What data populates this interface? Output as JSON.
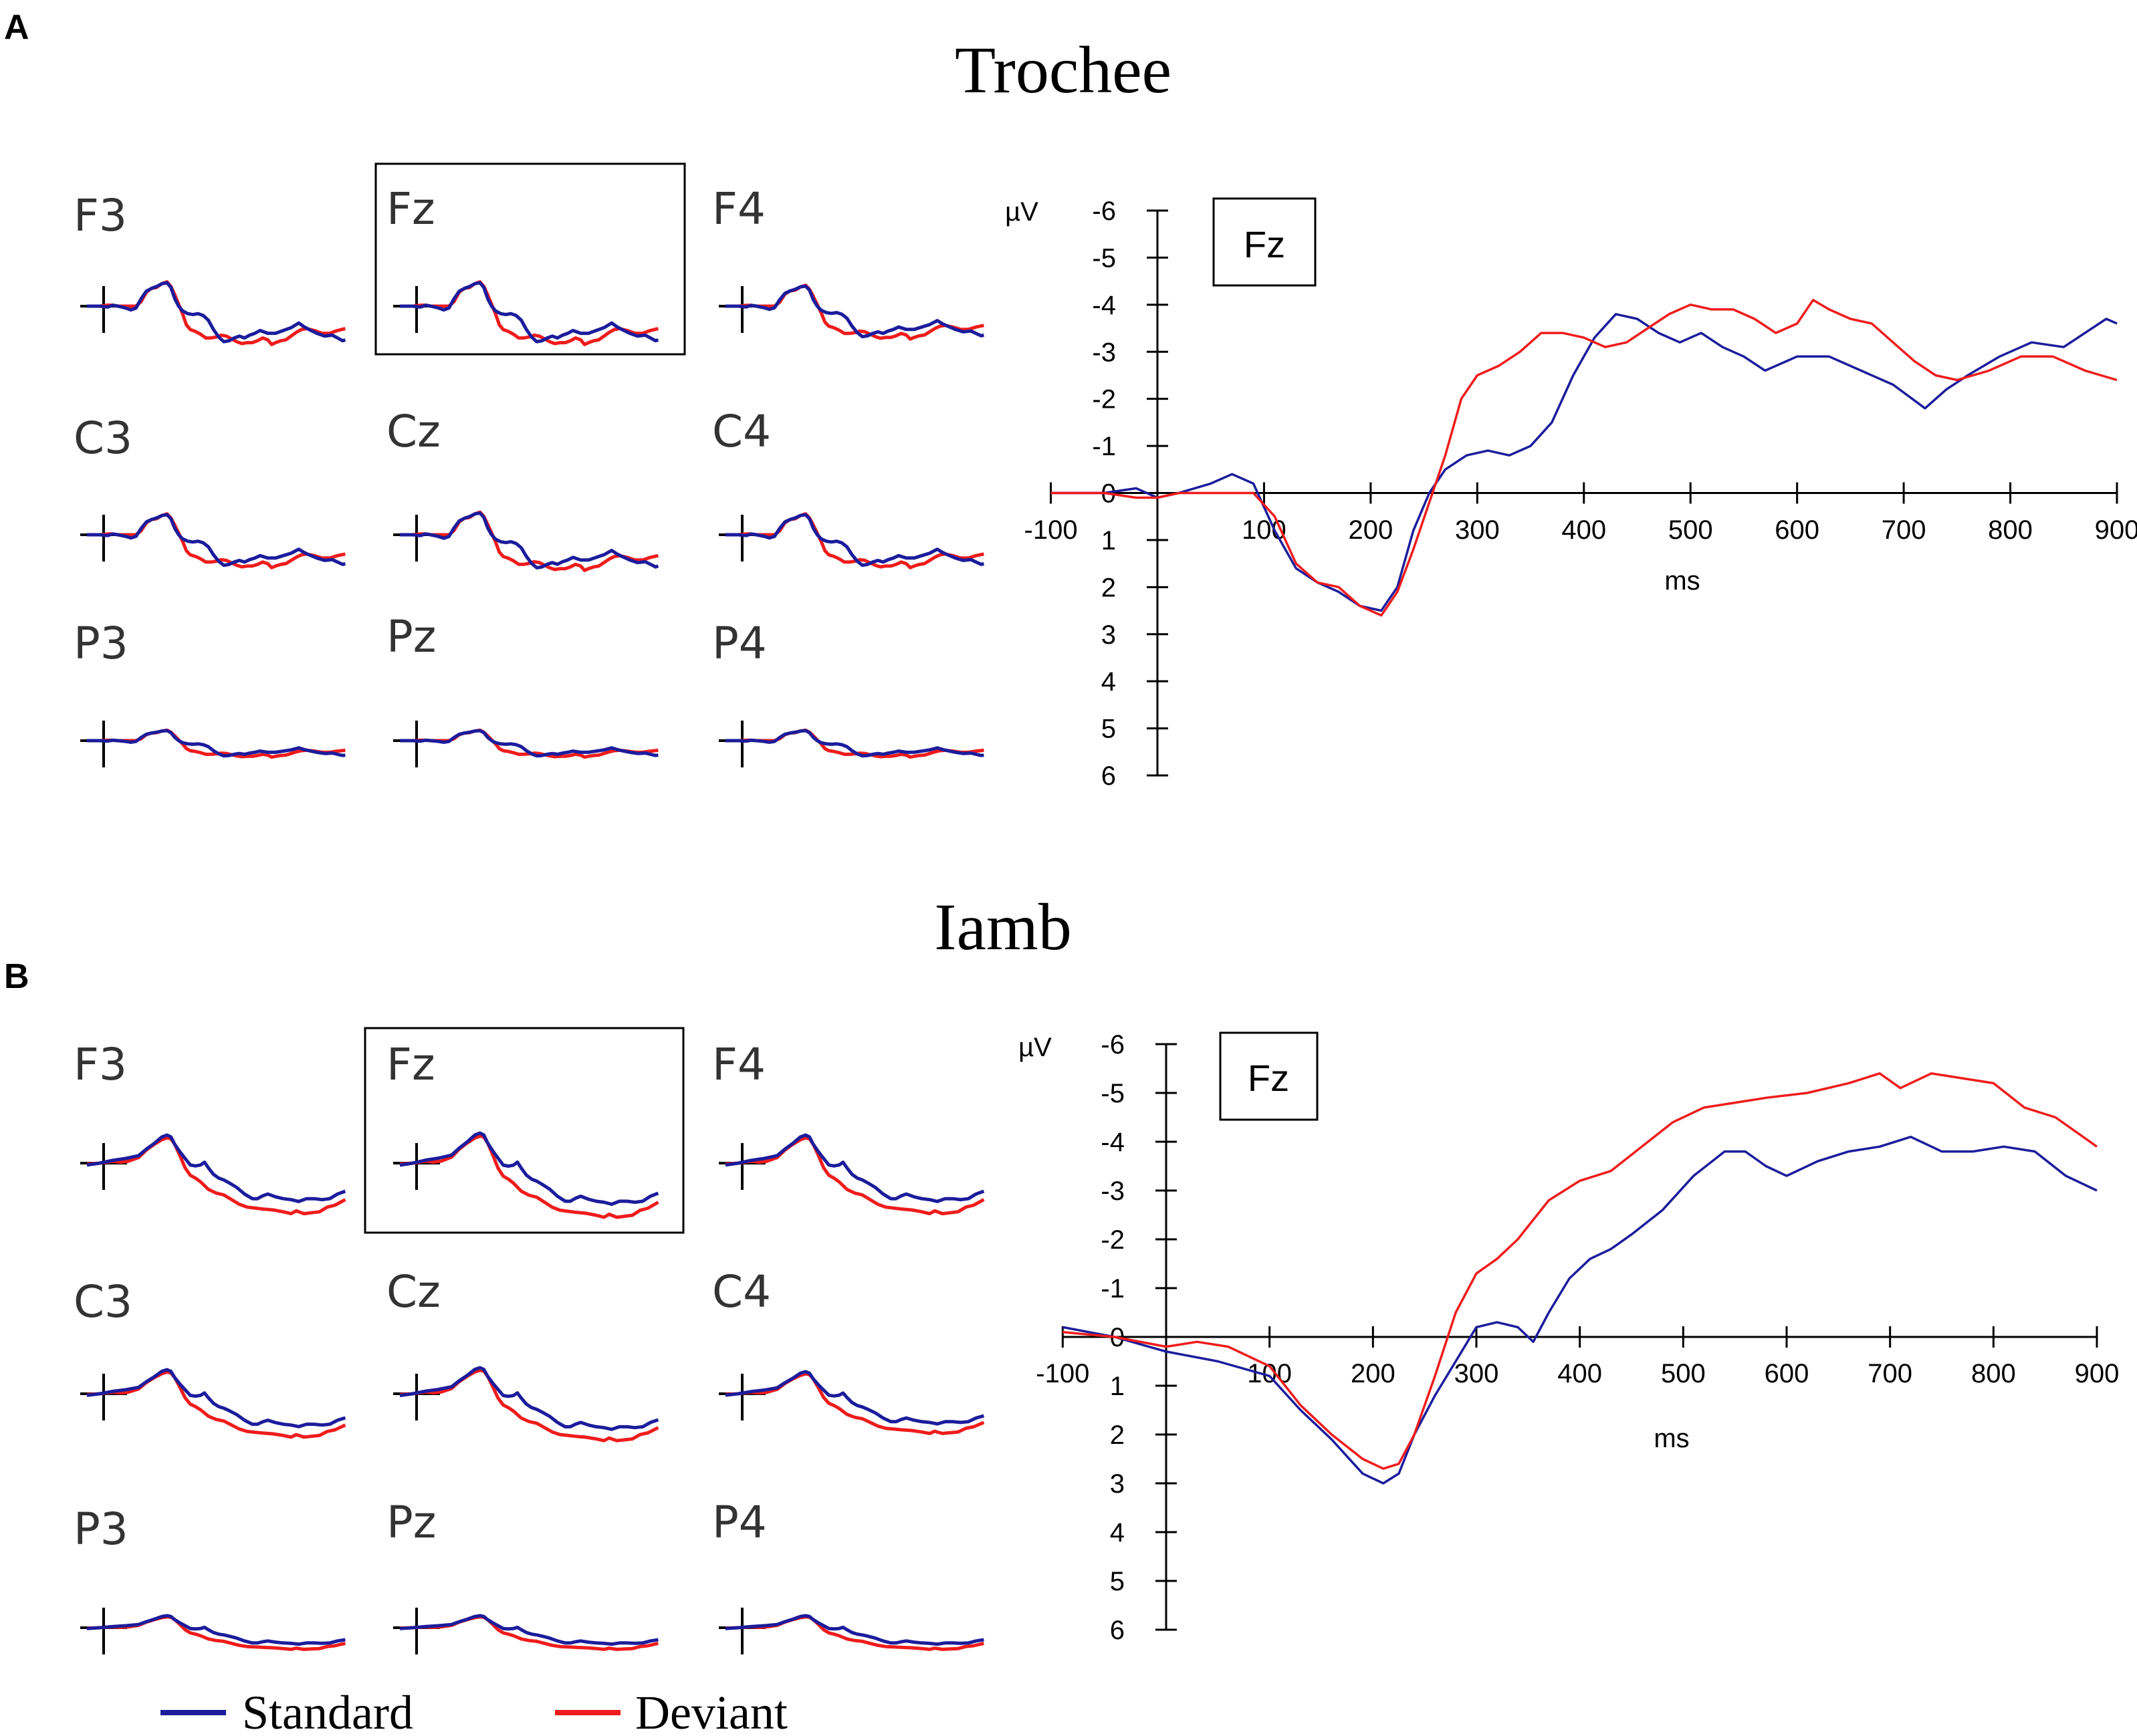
{
  "panel_a": {
    "letter": "A",
    "title": "Trochee",
    "electrodes": [
      "F3",
      "Fz",
      "F4",
      "C3",
      "Cz",
      "C4",
      "P3",
      "Pz",
      "P4"
    ]
  },
  "panel_b": {
    "letter": "B",
    "title": "Iamb",
    "electrodes": [
      "F3",
      "Fz",
      "F4",
      "C3",
      "Cz",
      "C4",
      "P3",
      "Pz",
      "P4"
    ]
  },
  "legend": {
    "items": [
      {
        "label": "Standard",
        "color": "#1c1c9c"
      },
      {
        "label": "Deviant",
        "color": "#ee1c1c"
      }
    ]
  },
  "colors": {
    "standard": "#1c1c9c",
    "deviant": "#ee1c1c"
  },
  "chart_data": [
    {
      "type": "line",
      "panel": "A",
      "box_label": "Fz",
      "xlabel": "ms",
      "ylabel": "µV",
      "xlim": [
        -100,
        900
      ],
      "ylim": [
        6,
        -6
      ],
      "y_inverted": true,
      "xticks": [
        -100,
        100,
        200,
        300,
        400,
        500,
        600,
        700,
        800,
        900
      ],
      "yticks": [
        -6,
        -5,
        -4,
        -3,
        -2,
        -1,
        0,
        1,
        2,
        3,
        4,
        5,
        6
      ],
      "series": [
        {
          "name": "Standard",
          "x": [
            -100,
            -50,
            -20,
            0,
            20,
            50,
            70,
            90,
            110,
            130,
            150,
            170,
            190,
            210,
            225,
            240,
            255,
            270,
            290,
            310,
            330,
            350,
            370,
            390,
            410,
            430,
            450,
            470,
            490,
            510,
            530,
            550,
            570,
            600,
            630,
            660,
            690,
            720,
            740,
            760,
            790,
            820,
            850,
            870,
            890,
            900
          ],
          "y": [
            0,
            0,
            -0.1,
            0.1,
            0,
            -0.2,
            -0.4,
            -0.2,
            0.8,
            1.6,
            1.9,
            2.1,
            2.4,
            2.5,
            2.0,
            0.8,
            0,
            -0.5,
            -0.8,
            -0.9,
            -0.8,
            -1.0,
            -1.5,
            -2.5,
            -3.3,
            -3.8,
            -3.7,
            -3.4,
            -3.2,
            -3.4,
            -3.1,
            -2.9,
            -2.6,
            -2.9,
            -2.9,
            -2.6,
            -2.3,
            -1.8,
            -2.2,
            -2.5,
            -2.9,
            -3.2,
            -3.1,
            -3.4,
            -3.7,
            -3.6
          ]
        },
        {
          "name": "Deviant",
          "x": [
            -100,
            -50,
            -20,
            0,
            20,
            50,
            70,
            90,
            110,
            130,
            150,
            170,
            190,
            210,
            225,
            240,
            255,
            270,
            285,
            300,
            320,
            340,
            360,
            380,
            400,
            420,
            440,
            460,
            480,
            500,
            520,
            540,
            560,
            580,
            600,
            615,
            630,
            650,
            670,
            690,
            710,
            730,
            750,
            780,
            810,
            840,
            870,
            900
          ],
          "y": [
            0,
            0,
            0.1,
            0.1,
            0,
            0,
            0,
            0,
            0.5,
            1.5,
            1.9,
            2.0,
            2.4,
            2.6,
            2.1,
            1.2,
            0.2,
            -0.8,
            -2.0,
            -2.5,
            -2.7,
            -3.0,
            -3.4,
            -3.4,
            -3.3,
            -3.1,
            -3.2,
            -3.5,
            -3.8,
            -4.0,
            -3.9,
            -3.9,
            -3.7,
            -3.4,
            -3.6,
            -4.1,
            -3.9,
            -3.7,
            -3.6,
            -3.2,
            -2.8,
            -2.5,
            -2.4,
            -2.6,
            -2.9,
            -2.9,
            -2.6,
            -2.4
          ]
        }
      ]
    },
    {
      "type": "line",
      "panel": "B",
      "box_label": "Fz",
      "xlabel": "ms",
      "ylabel": "µV",
      "xlim": [
        -100,
        900
      ],
      "ylim": [
        6,
        -6
      ],
      "y_inverted": true,
      "xticks": [
        -100,
        100,
        200,
        300,
        400,
        500,
        600,
        700,
        800,
        900
      ],
      "yticks": [
        -6,
        -5,
        -4,
        -3,
        -2,
        -1,
        0,
        1,
        2,
        3,
        4,
        5,
        6
      ],
      "series": [
        {
          "name": "Standard",
          "x": [
            -100,
            -50,
            0,
            50,
            100,
            130,
            160,
            190,
            210,
            225,
            240,
            260,
            280,
            300,
            320,
            340,
            355,
            370,
            390,
            410,
            430,
            450,
            480,
            510,
            540,
            560,
            580,
            600,
            630,
            660,
            690,
            720,
            750,
            780,
            810,
            840,
            870,
            900
          ],
          "y": [
            -0.2,
            0,
            0.3,
            0.5,
            0.8,
            1.5,
            2.1,
            2.8,
            3.0,
            2.8,
            2.0,
            1.2,
            0.5,
            -0.2,
            -0.3,
            -0.2,
            0.1,
            -0.5,
            -1.2,
            -1.6,
            -1.8,
            -2.1,
            -2.6,
            -3.3,
            -3.8,
            -3.8,
            -3.5,
            -3.3,
            -3.6,
            -3.8,
            -3.9,
            -4.1,
            -3.8,
            -3.8,
            -3.9,
            -3.8,
            -3.3,
            -3.0
          ]
        },
        {
          "name": "Deviant",
          "x": [
            -100,
            -50,
            0,
            30,
            60,
            100,
            130,
            160,
            190,
            210,
            225,
            240,
            260,
            280,
            300,
            320,
            340,
            370,
            400,
            430,
            460,
            490,
            520,
            550,
            580,
            620,
            660,
            690,
            710,
            740,
            770,
            800,
            830,
            860,
            900
          ],
          "y": [
            -0.1,
            0,
            0.2,
            0.1,
            0.2,
            0.6,
            1.4,
            2.0,
            2.5,
            2.7,
            2.6,
            2.0,
            0.8,
            -0.5,
            -1.3,
            -1.6,
            -2.0,
            -2.8,
            -3.2,
            -3.4,
            -3.9,
            -4.4,
            -4.7,
            -4.8,
            -4.9,
            -5.0,
            -5.2,
            -5.4,
            -5.1,
            -5.4,
            -5.3,
            -5.2,
            -4.7,
            -4.5,
            -3.9
          ]
        }
      ]
    }
  ]
}
